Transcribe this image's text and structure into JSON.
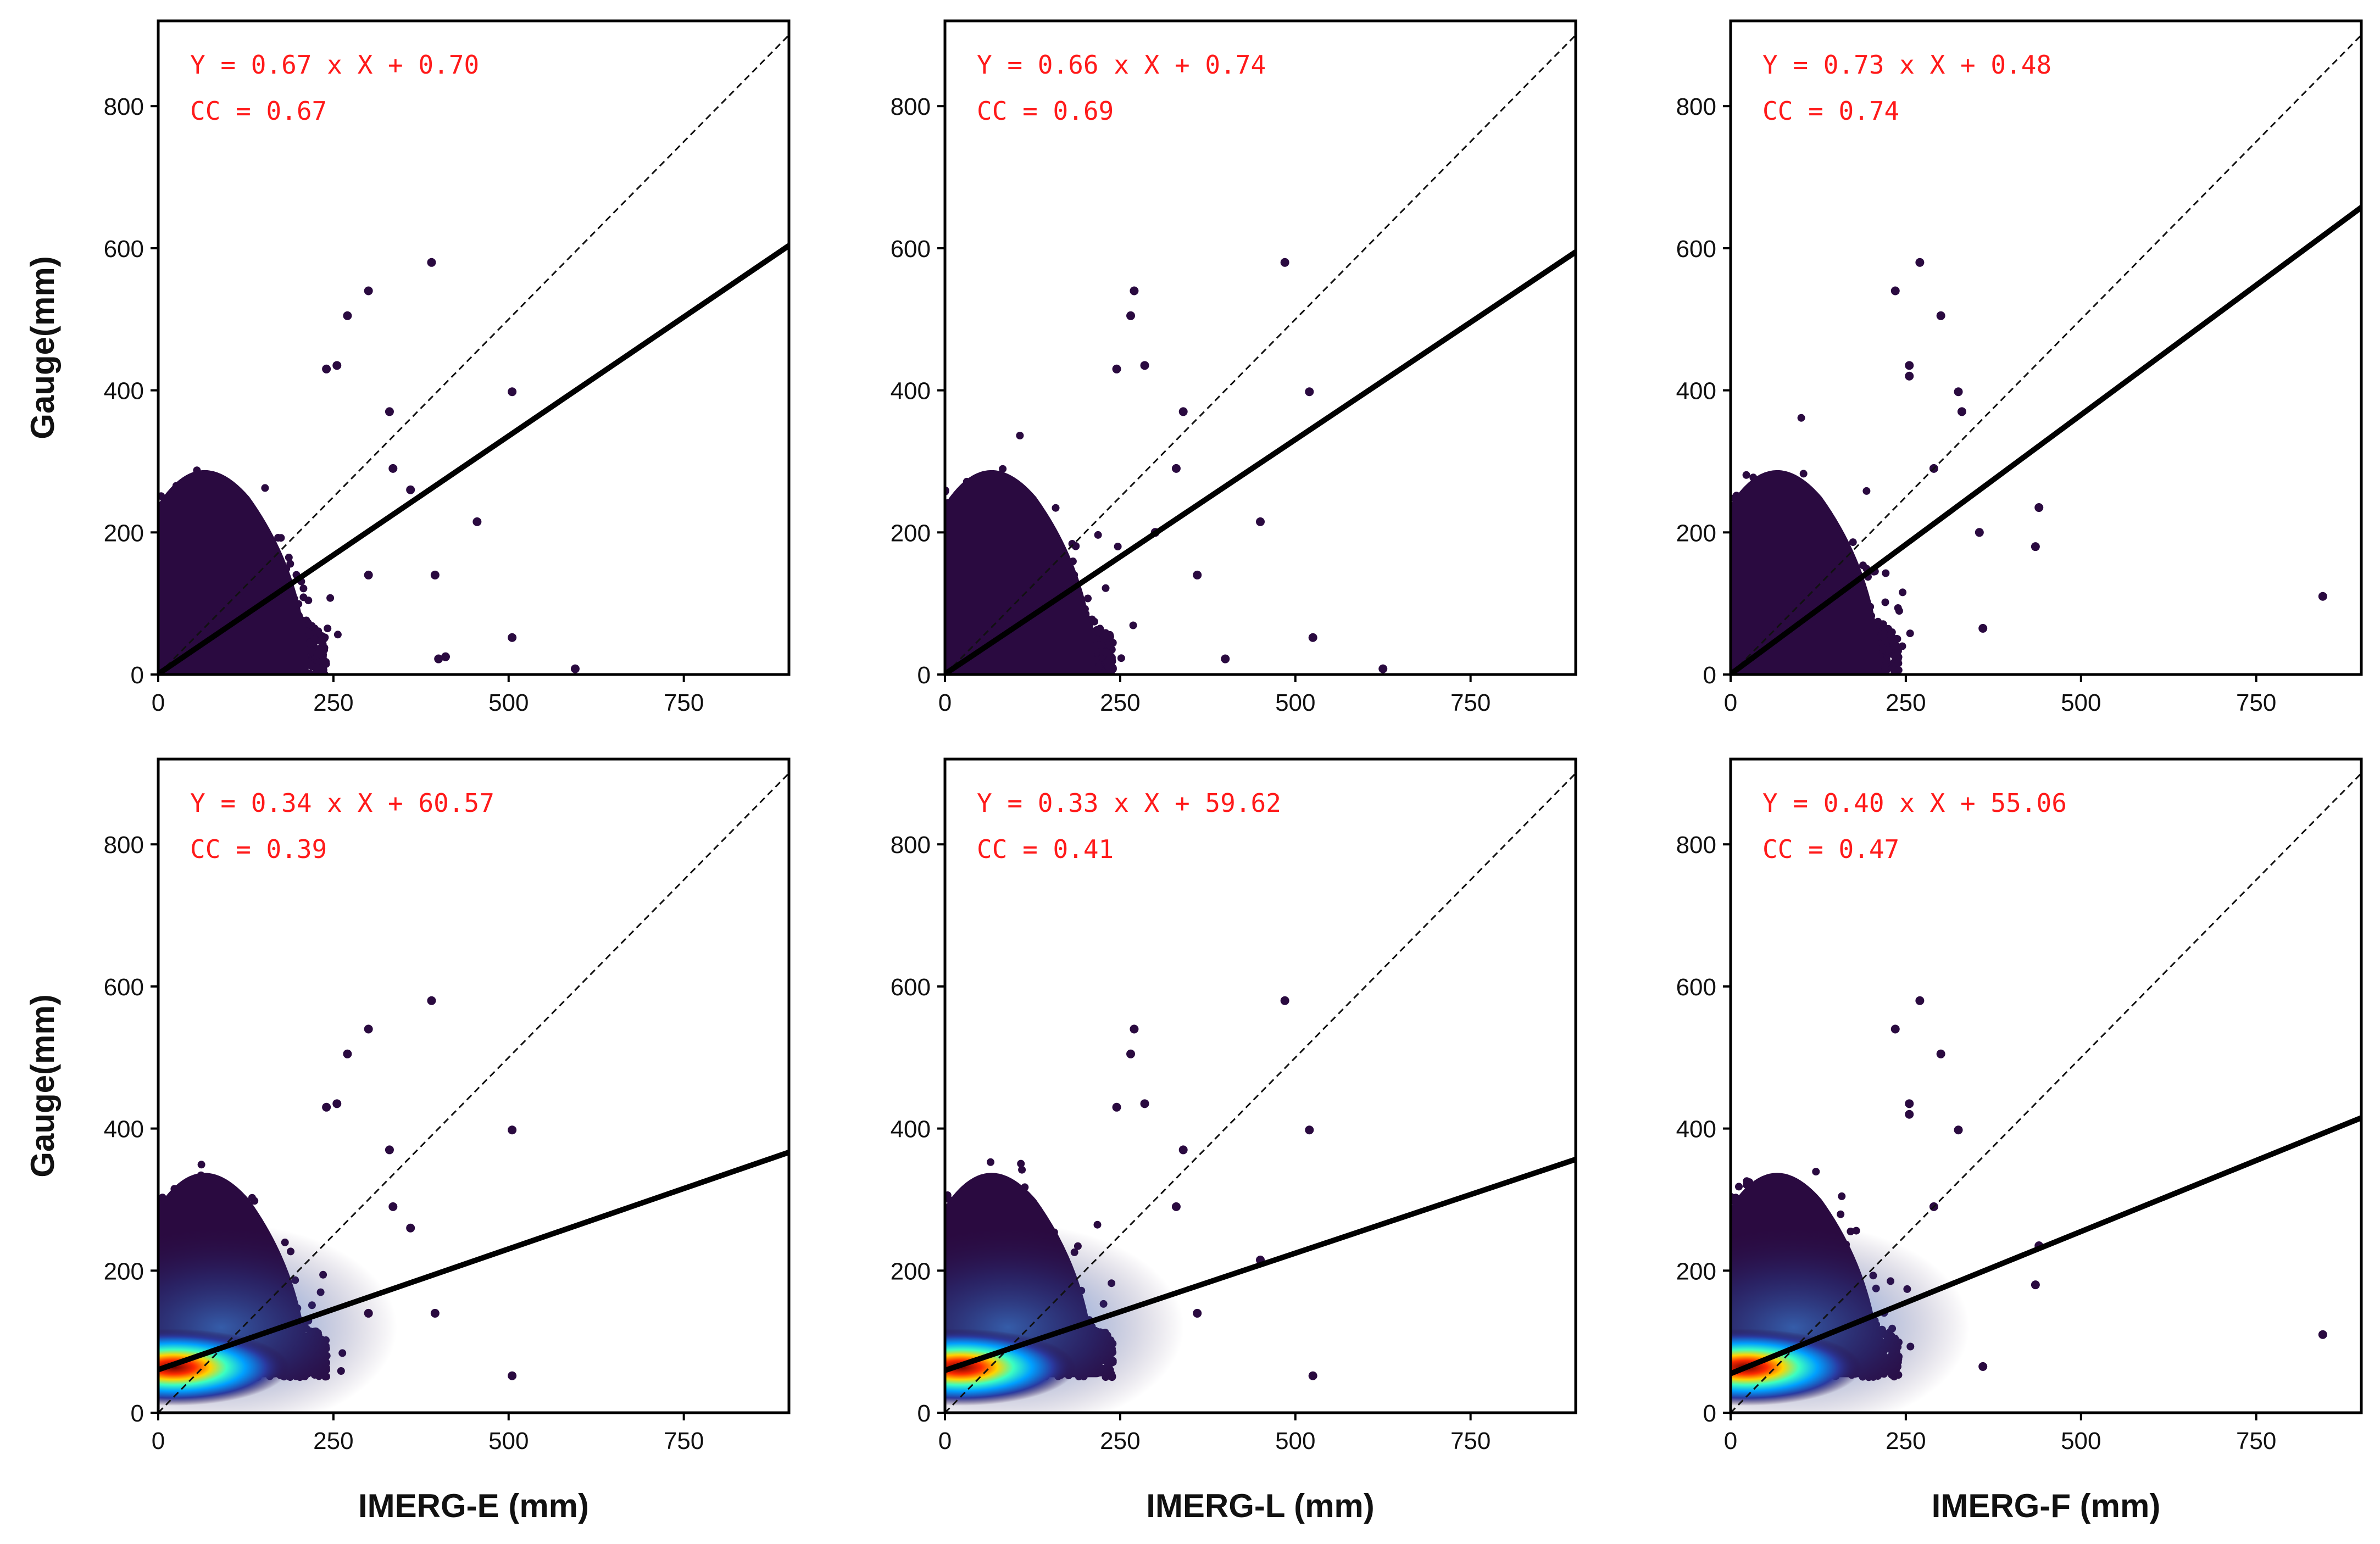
{
  "chart_data": [
    {
      "type": "scatter",
      "panel": "top-left",
      "xlabel": "",
      "ylabel": "Gauge(mm)",
      "xlim": [
        0,
        900
      ],
      "ylim": [
        0,
        920
      ],
      "xticks": [
        "0",
        "250",
        "500",
        "750"
      ],
      "yticks": [
        "0",
        "200",
        "400",
        "600",
        "800"
      ],
      "annotation": {
        "equation": "Y = 0.67 x X + 0.70",
        "cc": "CC = 0.67"
      },
      "fit": {
        "slope": 0.67,
        "intercept": 0.7
      },
      "density_floor": 0,
      "outliers": [
        [
          300,
          540
        ],
        [
          390,
          580
        ],
        [
          270,
          505
        ],
        [
          255,
          435
        ],
        [
          240,
          430
        ],
        [
          505,
          398
        ],
        [
          455,
          215
        ],
        [
          410,
          25
        ],
        [
          400,
          22
        ],
        [
          505,
          52
        ],
        [
          595,
          8
        ],
        [
          330,
          370
        ],
        [
          300,
          140
        ],
        [
          395,
          140
        ],
        [
          335,
          290
        ],
        [
          360,
          260
        ]
      ]
    },
    {
      "type": "scatter",
      "panel": "top-middle",
      "xlabel": "",
      "ylabel": "",
      "xlim": [
        0,
        900
      ],
      "ylim": [
        0,
        920
      ],
      "xticks": [
        "0",
        "250",
        "500",
        "750"
      ],
      "yticks": [
        "0",
        "200",
        "400",
        "600",
        "800"
      ],
      "annotation": {
        "equation": "Y = 0.66 x X + 0.74",
        "cc": "CC = 0.69"
      },
      "fit": {
        "slope": 0.66,
        "intercept": 0.74
      },
      "density_floor": 0,
      "outliers": [
        [
          270,
          540
        ],
        [
          485,
          580
        ],
        [
          265,
          505
        ],
        [
          285,
          435
        ],
        [
          245,
          430
        ],
        [
          520,
          398
        ],
        [
          450,
          215
        ],
        [
          400,
          22
        ],
        [
          525,
          52
        ],
        [
          625,
          8
        ],
        [
          340,
          370
        ],
        [
          360,
          140
        ],
        [
          300,
          200
        ],
        [
          330,
          290
        ]
      ]
    },
    {
      "type": "scatter",
      "panel": "top-right",
      "xlabel": "",
      "ylabel": "",
      "xlim": [
        0,
        900
      ],
      "ylim": [
        0,
        920
      ],
      "xticks": [
        "0",
        "250",
        "500",
        "750"
      ],
      "yticks": [
        "0",
        "200",
        "400",
        "600",
        "800"
      ],
      "annotation": {
        "equation": "Y = 0.73 x X + 0.48",
        "cc": "CC = 0.74"
      },
      "fit": {
        "slope": 0.73,
        "intercept": 0.48
      },
      "density_floor": 0,
      "outliers": [
        [
          270,
          580
        ],
        [
          235,
          540
        ],
        [
          300,
          505
        ],
        [
          255,
          435
        ],
        [
          255,
          420
        ],
        [
          325,
          398
        ],
        [
          440,
          235
        ],
        [
          435,
          180
        ],
        [
          845,
          110
        ],
        [
          360,
          65
        ],
        [
          355,
          200
        ],
        [
          290,
          290
        ],
        [
          330,
          370
        ]
      ]
    },
    {
      "type": "scatter",
      "panel": "bottom-left",
      "xlabel": "IMERG-E  (mm)",
      "ylabel": "Gauge(mm)",
      "xlim": [
        0,
        900
      ],
      "ylim": [
        0,
        920
      ],
      "xticks": [
        "0",
        "250",
        "500",
        "750"
      ],
      "yticks": [
        "0",
        "200",
        "400",
        "600",
        "800"
      ],
      "annotation": {
        "equation": "Y = 0.34 x X + 60.57",
        "cc": "CC = 0.39"
      },
      "fit": {
        "slope": 0.34,
        "intercept": 60.57
      },
      "density_floor": 50,
      "outliers": [
        [
          300,
          540
        ],
        [
          390,
          580
        ],
        [
          270,
          505
        ],
        [
          255,
          435
        ],
        [
          240,
          430
        ],
        [
          505,
          398
        ],
        [
          330,
          370
        ],
        [
          505,
          52
        ],
        [
          395,
          140
        ],
        [
          300,
          140
        ],
        [
          335,
          290
        ],
        [
          360,
          260
        ]
      ]
    },
    {
      "type": "scatter",
      "panel": "bottom-middle",
      "xlabel": "IMERG-L  (mm)",
      "ylabel": "",
      "xlim": [
        0,
        900
      ],
      "ylim": [
        0,
        920
      ],
      "xticks": [
        "0",
        "250",
        "500",
        "750"
      ],
      "yticks": [
        "0",
        "200",
        "400",
        "600",
        "800"
      ],
      "annotation": {
        "equation": "Y = 0.33 x X + 59.62",
        "cc": "CC = 0.41"
      },
      "fit": {
        "slope": 0.33,
        "intercept": 59.62
      },
      "density_floor": 50,
      "outliers": [
        [
          270,
          540
        ],
        [
          485,
          580
        ],
        [
          265,
          505
        ],
        [
          285,
          435
        ],
        [
          245,
          430
        ],
        [
          520,
          398
        ],
        [
          450,
          215
        ],
        [
          525,
          52
        ],
        [
          340,
          370
        ],
        [
          360,
          140
        ],
        [
          330,
          290
        ]
      ]
    },
    {
      "type": "scatter",
      "panel": "bottom-right",
      "xlabel": "IMERG-F  (mm)",
      "ylabel": "",
      "xlim": [
        0,
        900
      ],
      "ylim": [
        0,
        920
      ],
      "xticks": [
        "0",
        "250",
        "500",
        "750"
      ],
      "yticks": [
        "0",
        "200",
        "400",
        "600",
        "800"
      ],
      "annotation": {
        "equation": "Y = 0.40 x X + 55.06",
        "cc": "CC = 0.47"
      },
      "fit": {
        "slope": 0.4,
        "intercept": 55.06
      },
      "density_floor": 50,
      "outliers": [
        [
          270,
          580
        ],
        [
          235,
          540
        ],
        [
          300,
          505
        ],
        [
          255,
          435
        ],
        [
          255,
          420
        ],
        [
          325,
          398
        ],
        [
          440,
          235
        ],
        [
          435,
          180
        ],
        [
          845,
          110
        ],
        [
          360,
          65
        ],
        [
          290,
          290
        ]
      ]
    }
  ],
  "colors": {
    "annotation": "#ff1a1a",
    "points": "#2a0a40",
    "fit_line": "#000000",
    "one_to_one": "#111111"
  }
}
